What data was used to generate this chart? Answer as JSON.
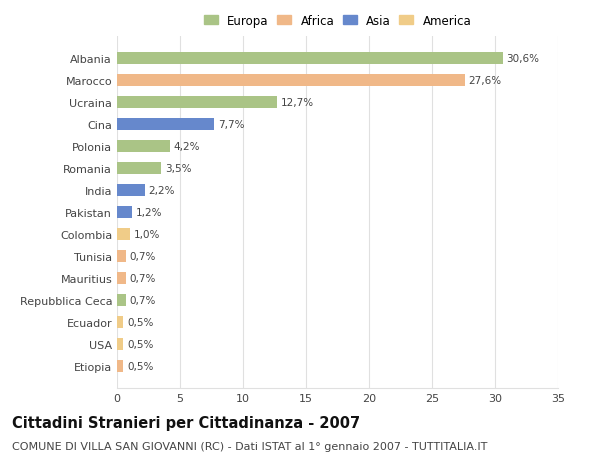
{
  "categories": [
    "Albania",
    "Marocco",
    "Ucraina",
    "Cina",
    "Polonia",
    "Romania",
    "India",
    "Pakistan",
    "Colombia",
    "Tunisia",
    "Mauritius",
    "Repubblica Ceca",
    "Ecuador",
    "USA",
    "Etiopia"
  ],
  "values": [
    30.6,
    27.6,
    12.7,
    7.7,
    4.2,
    3.5,
    2.2,
    1.2,
    1.0,
    0.7,
    0.7,
    0.7,
    0.5,
    0.5,
    0.5
  ],
  "labels": [
    "30,6%",
    "27,6%",
    "12,7%",
    "7,7%",
    "4,2%",
    "3,5%",
    "2,2%",
    "1,2%",
    "1,0%",
    "0,7%",
    "0,7%",
    "0,7%",
    "0,5%",
    "0,5%",
    "0,5%"
  ],
  "colors": [
    "#aac486",
    "#f0b888",
    "#aac486",
    "#6688cc",
    "#aac486",
    "#aac486",
    "#6688cc",
    "#6688cc",
    "#f0cc88",
    "#f0b888",
    "#f0b888",
    "#aac486",
    "#f0cc88",
    "#f0cc88",
    "#f0b888"
  ],
  "legend_labels": [
    "Europa",
    "Africa",
    "Asia",
    "America"
  ],
  "legend_colors": [
    "#aac486",
    "#f0b888",
    "#6688cc",
    "#f0cc88"
  ],
  "title": "Cittadini Stranieri per Cittadinanza - 2007",
  "subtitle": "COMUNE DI VILLA SAN GIOVANNI (RC) - Dati ISTAT al 1° gennaio 2007 - TUTTITALIA.IT",
  "xlim": [
    0,
    35
  ],
  "xticks": [
    0,
    5,
    10,
    15,
    20,
    25,
    30,
    35
  ],
  "background_color": "#ffffff",
  "grid_color": "#e0e0e0",
  "bar_height": 0.55,
  "title_fontsize": 10.5,
  "subtitle_fontsize": 8,
  "label_fontsize": 7.5,
  "tick_fontsize": 8,
  "legend_fontsize": 8.5
}
